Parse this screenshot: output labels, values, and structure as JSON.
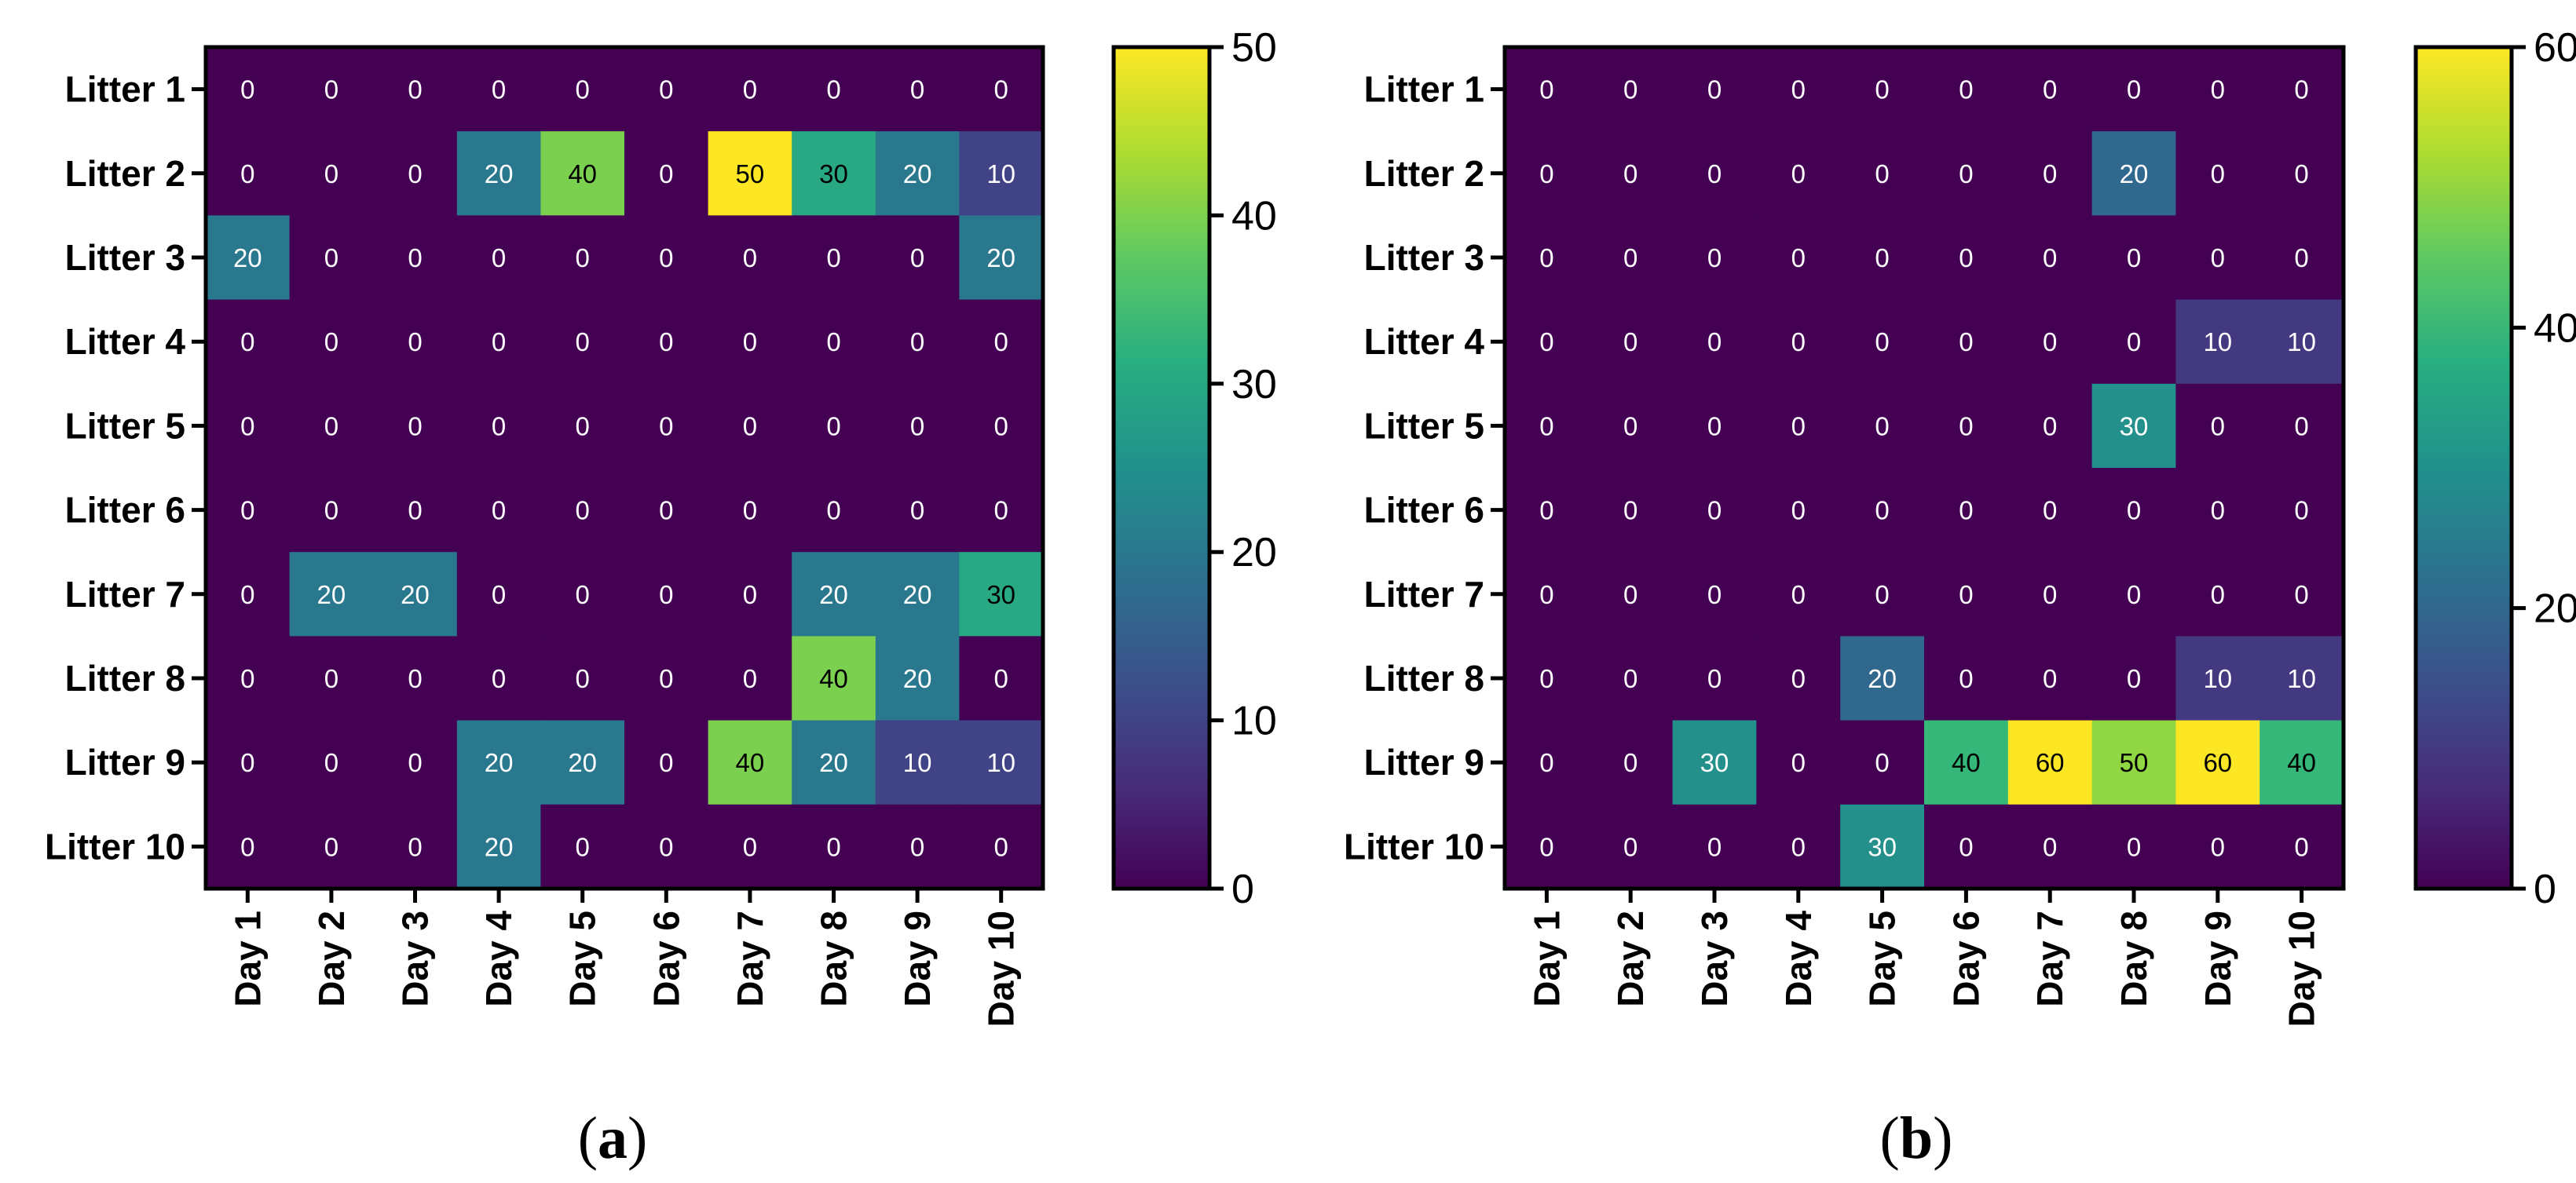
{
  "chart_data": [
    {
      "type": "heatmap",
      "panel_label": "a",
      "rows": [
        "Litter 1",
        "Litter 2",
        "Litter 3",
        "Litter 4",
        "Litter 5",
        "Litter 6",
        "Litter 7",
        "Litter 8",
        "Litter 9",
        "Litter 10"
      ],
      "columns": [
        "Day 1",
        "Day 2",
        "Day 3",
        "Day 4",
        "Day 5",
        "Day 6",
        "Day 7",
        "Day 8",
        "Day 9",
        "Day 10"
      ],
      "values": [
        [
          0,
          0,
          0,
          0,
          0,
          0,
          0,
          0,
          0,
          0
        ],
        [
          0,
          0,
          0,
          20,
          40,
          0,
          50,
          30,
          20,
          10
        ],
        [
          20,
          0,
          0,
          0,
          0,
          0,
          0,
          0,
          0,
          20
        ],
        [
          0,
          0,
          0,
          0,
          0,
          0,
          0,
          0,
          0,
          0
        ],
        [
          0,
          0,
          0,
          0,
          0,
          0,
          0,
          0,
          0,
          0
        ],
        [
          0,
          0,
          0,
          0,
          0,
          0,
          0,
          0,
          0,
          0
        ],
        [
          0,
          20,
          20,
          0,
          0,
          0,
          0,
          20,
          20,
          30
        ],
        [
          0,
          0,
          0,
          0,
          0,
          0,
          0,
          40,
          20,
          0
        ],
        [
          0,
          0,
          0,
          20,
          20,
          0,
          40,
          20,
          10,
          10
        ],
        [
          0,
          0,
          0,
          20,
          0,
          0,
          0,
          0,
          0,
          0
        ]
      ],
      "colorbar": {
        "min": 0,
        "max": 50,
        "ticks": [
          0,
          10,
          20,
          30,
          40,
          50
        ]
      },
      "colormap": "viridis"
    },
    {
      "type": "heatmap",
      "panel_label": "b",
      "rows": [
        "Litter 1",
        "Litter 2",
        "Litter 3",
        "Litter 4",
        "Litter 5",
        "Litter 6",
        "Litter 7",
        "Litter 8",
        "Litter 9",
        "Litter 10"
      ],
      "columns": [
        "Day 1",
        "Day 2",
        "Day 3",
        "Day 4",
        "Day 5",
        "Day 6",
        "Day 7",
        "Day 8",
        "Day 9",
        "Day 10"
      ],
      "values": [
        [
          0,
          0,
          0,
          0,
          0,
          0,
          0,
          0,
          0,
          0
        ],
        [
          0,
          0,
          0,
          0,
          0,
          0,
          0,
          20,
          0,
          0
        ],
        [
          0,
          0,
          0,
          0,
          0,
          0,
          0,
          0,
          0,
          0
        ],
        [
          0,
          0,
          0,
          0,
          0,
          0,
          0,
          0,
          10,
          10
        ],
        [
          0,
          0,
          0,
          0,
          0,
          0,
          0,
          30,
          0,
          0
        ],
        [
          0,
          0,
          0,
          0,
          0,
          0,
          0,
          0,
          0,
          0
        ],
        [
          0,
          0,
          0,
          0,
          0,
          0,
          0,
          0,
          0,
          0
        ],
        [
          0,
          0,
          0,
          0,
          20,
          0,
          0,
          0,
          10,
          10
        ],
        [
          0,
          0,
          30,
          0,
          0,
          40,
          60,
          50,
          60,
          40
        ],
        [
          0,
          0,
          0,
          0,
          30,
          0,
          0,
          0,
          0,
          0
        ]
      ],
      "colorbar": {
        "min": 0,
        "max": 60,
        "ticks": [
          0,
          20,
          40,
          60
        ]
      },
      "colormap": "viridis"
    }
  ]
}
